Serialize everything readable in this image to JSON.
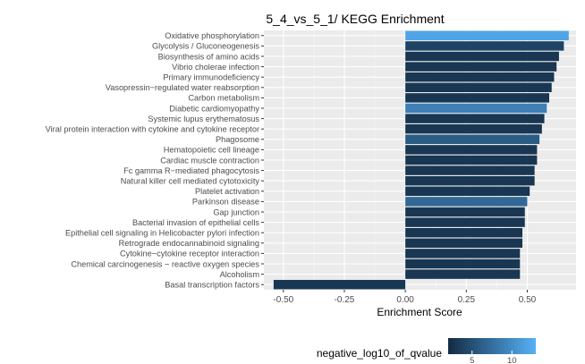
{
  "chart_data": {
    "type": "bar",
    "orientation": "horizontal",
    "title": "5_4_vs_5_1/ KEGG Enrichment",
    "xlabel": "Enrichment Score",
    "ylabel": "",
    "xlim": [
      -0.58,
      0.7
    ],
    "x_ticks": [
      -0.5,
      -0.25,
      0.0,
      0.25,
      0.5
    ],
    "x_tick_labels": [
      "-0.50",
      "-0.25",
      "0.00",
      "0.25",
      "0.50"
    ],
    "grid": true,
    "background": "#ebebeb",
    "categories": [
      "Oxidative phosphorylation",
      "Glycolysis / Gluconeogenesis",
      "Biosynthesis of amino acids",
      "Vibrio cholerae infection",
      "Primary immunodeficiency",
      "Vasopressin−regulated water reabsorption",
      "Carbon metabolism",
      "Diabetic cardiomyopathy",
      "Systemic lupus erythematosus",
      "Viral protein interaction with cytokine and cytokine receptor",
      "Phagosome",
      "Hematopoietic cell lineage",
      "Cardiac muscle contraction",
      "Fc gamma R−mediated phagocytosis",
      "Natural killer cell mediated cytotoxicity",
      "Platelet activation",
      "Parkinson disease",
      "Gap junction",
      "Bacterial invasion of epithelial cells",
      "Epithelial cell signaling in Helicobacter pylori infection",
      "Retrograde endocannabinoid signaling",
      "Cytokine−cytokine receptor interaction",
      "Chemical carcinogenesis − reactive oxygen species",
      "Alcoholism",
      "Basal transcription factors"
    ],
    "values": [
      0.67,
      0.65,
      0.63,
      0.62,
      0.61,
      0.6,
      0.59,
      0.58,
      0.57,
      0.56,
      0.55,
      0.54,
      0.54,
      0.53,
      0.53,
      0.51,
      0.5,
      0.49,
      0.49,
      0.48,
      0.48,
      0.47,
      0.47,
      0.47,
      -0.54
    ],
    "color_values": [
      12,
      4,
      3,
      3,
      3,
      3,
      3,
      9,
      3,
      3,
      6,
      3,
      3,
      3,
      3,
      3,
      7,
      3,
      3,
      3,
      3,
      3,
      3,
      3,
      3
    ],
    "color_scale": {
      "name": "negative_log10_of_qvalue",
      "min": 2,
      "max": 13,
      "low_color": "#132b43",
      "high_color": "#56b1f7",
      "ticks": [
        5,
        10
      ],
      "tick_labels": [
        "5",
        "10"
      ],
      "legend_position": "bottom"
    }
  }
}
